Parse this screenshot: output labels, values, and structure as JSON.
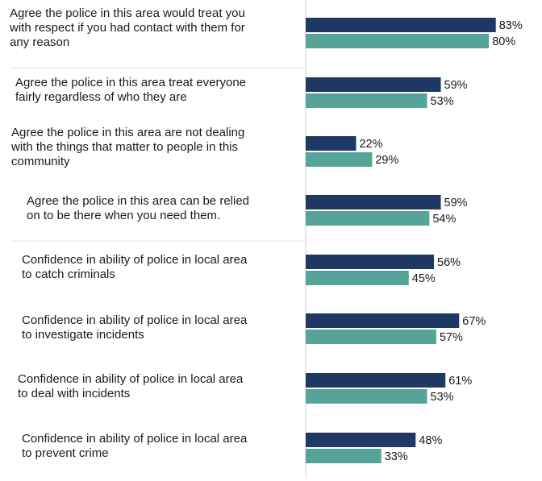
{
  "chart_data": {
    "type": "bar",
    "orientation": "horizontal",
    "categories": [
      [
        "Agree the police in this area would treat you",
        "with respect if you had contact with them for",
        "any reason"
      ],
      [
        "Agree the police in this area treat everyone",
        "fairly regardless of who they are"
      ],
      [
        "Agree the police in this area are not dealing",
        "with the things that matter to people in this",
        "community"
      ],
      [
        "Agree the police in this area can be relied",
        "on to be there when you need them."
      ],
      [
        "Confidence in ability of police in local area",
        "to catch criminals"
      ],
      [
        "Confidence in ability of police in local area",
        "to investigate incidents"
      ],
      [
        "Confidence in ability of police in local area",
        "to deal with incidents"
      ],
      [
        "Confidence in ability of police in local area",
        "to prevent crime"
      ]
    ],
    "series": [
      {
        "values": [
          83,
          59,
          22,
          59,
          56,
          67,
          61,
          48
        ],
        "labels": [
          "83%",
          "59%",
          "22%",
          "59%",
          "56%",
          "67%",
          "61%",
          "48%"
        ],
        "color": "#1f3864"
      },
      {
        "values": [
          80,
          53,
          29,
          54,
          45,
          57,
          53,
          33
        ],
        "labels": [
          "80%",
          "53%",
          "29%",
          "54%",
          "45%",
          "57%",
          "53%",
          "33%"
        ],
        "color": "#56a39a"
      }
    ],
    "xlim": [
      0,
      100
    ],
    "grid": false,
    "legend": "none"
  }
}
